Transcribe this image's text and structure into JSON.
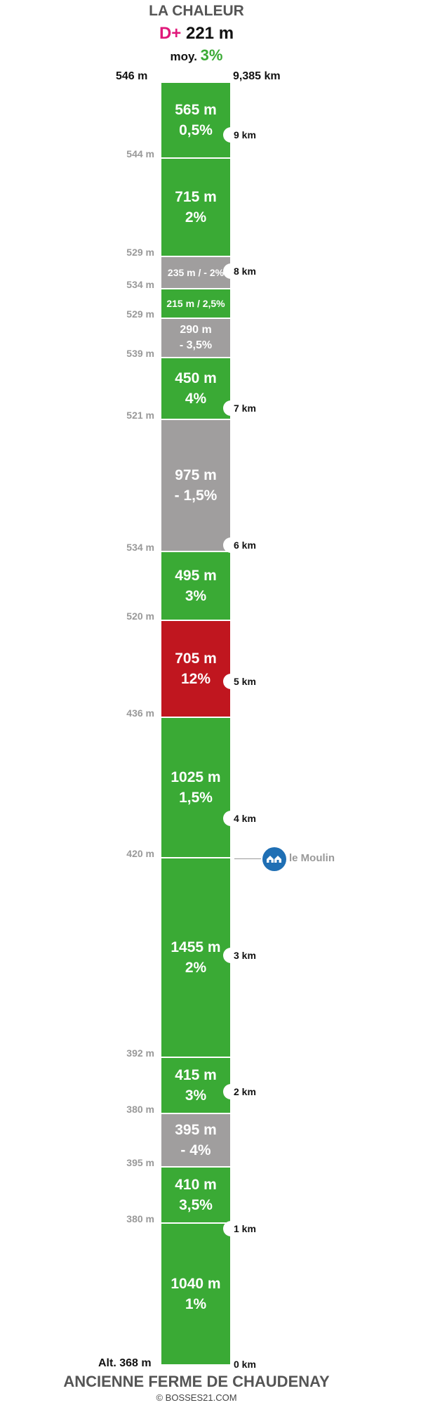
{
  "header": {
    "title": "LA CHALEUR",
    "dplus_label": "D+",
    "dplus_value": "221 m",
    "avg_label": "moy.",
    "avg_value": "3%"
  },
  "top_altitude": "546 m",
  "top_distance": "9,385 km",
  "segments": [
    {
      "length": "565 m",
      "grade": "0,5%",
      "color": "green",
      "style": "two-line"
    },
    {
      "length": "715 m",
      "grade": "2%",
      "color": "green",
      "style": "two-line"
    },
    {
      "length": "235 m / - 2%",
      "grade": "",
      "color": "grey",
      "style": "one-line"
    },
    {
      "length": "215 m / 2,5%",
      "grade": "",
      "color": "green",
      "style": "one-line"
    },
    {
      "length": "290 m",
      "grade": "- 3,5%",
      "color": "grey",
      "style": "two-line-small"
    },
    {
      "length": "450 m",
      "grade": "4%",
      "color": "green",
      "style": "two-line"
    },
    {
      "length": "975 m",
      "grade": "- 1,5%",
      "color": "grey",
      "style": "two-line"
    },
    {
      "length": "495 m",
      "grade": "3%",
      "color": "green",
      "style": "two-line"
    },
    {
      "length": "705 m",
      "grade": "12%",
      "color": "red",
      "style": "two-line"
    },
    {
      "length": "1025 m",
      "grade": "1,5%",
      "color": "green",
      "style": "two-line"
    },
    {
      "length": "1455 m",
      "grade": "2%",
      "color": "green",
      "style": "two-line"
    },
    {
      "length": "415 m",
      "grade": "3%",
      "color": "green",
      "style": "two-line"
    },
    {
      "length": "395 m",
      "grade": "- 4%",
      "color": "grey",
      "style": "two-line"
    },
    {
      "length": "410 m",
      "grade": "3,5%",
      "color": "green",
      "style": "two-line"
    },
    {
      "length": "1040 m",
      "grade": "1%",
      "color": "green",
      "style": "two-line"
    }
  ],
  "altitude_labels": [
    "544 m",
    "529 m",
    "534 m",
    "529 m",
    "539 m",
    "521 m",
    "534 m",
    "520 m",
    "436 m",
    "420 m",
    "392 m",
    "380 m",
    "395 m",
    "380 m"
  ],
  "km_markers": [
    "9 km",
    "8 km",
    "7 km",
    "6 km",
    "5 km",
    "4 km",
    "3 km",
    "2 km",
    "1 km"
  ],
  "poi": {
    "label": "le Moulin",
    "icon": "house-icon"
  },
  "bottom_altitude": "Alt. 368 m",
  "bottom_distance": "0 km",
  "start_name": "ANCIENNE FERME DE CHAUDENAY",
  "copyright": "© BOSSES21.COM",
  "colors": {
    "green": "#3aaa35",
    "grey": "#a09e9e",
    "red": "#c0161f",
    "dplus": "#e0187a",
    "poi": "#1f6fb4"
  }
}
